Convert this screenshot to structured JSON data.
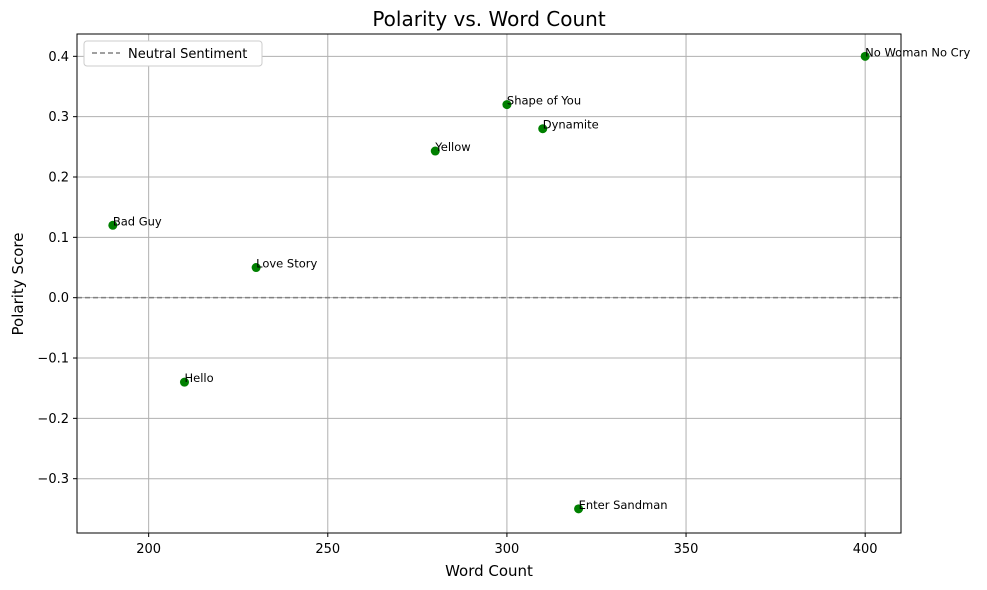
{
  "chart_data": {
    "type": "scatter",
    "title": "Polarity vs. Word Count",
    "xlabel": "Word Count",
    "ylabel": "Polarity Score",
    "xlim": [
      180,
      410
    ],
    "ylim": [
      -0.39,
      0.437
    ],
    "x_ticks": [
      200,
      250,
      300,
      350,
      400
    ],
    "y_ticks": [
      -0.3,
      -0.2,
      -0.1,
      0.0,
      0.1,
      0.2,
      0.3,
      0.4
    ],
    "x_tick_labels": [
      "200",
      "250",
      "300",
      "350",
      "400"
    ],
    "y_tick_labels": [
      "−0.3",
      "−0.2",
      "−0.1",
      "0.0",
      "0.1",
      "0.2",
      "0.3",
      "0.4"
    ],
    "grid": true,
    "legend": {
      "placement": "top-left",
      "entries": [
        "Neutral Sentiment"
      ]
    },
    "reference_line": {
      "y": 0,
      "style": "dashed",
      "color": "#808080",
      "label": "Neutral Sentiment"
    },
    "point_color": "#008000",
    "points": [
      {
        "label": "No Woman No Cry",
        "x": 400,
        "y": 0.4
      },
      {
        "label": "Shape of You",
        "x": 300,
        "y": 0.32
      },
      {
        "label": "Dynamite",
        "x": 310,
        "y": 0.28
      },
      {
        "label": "Yellow",
        "x": 280,
        "y": 0.243
      },
      {
        "label": "Bad Guy",
        "x": 190,
        "y": 0.12
      },
      {
        "label": "Love Story",
        "x": 230,
        "y": 0.05
      },
      {
        "label": "Hello",
        "x": 210,
        "y": -0.14
      },
      {
        "label": "Enter Sandman",
        "x": 320,
        "y": -0.35
      }
    ]
  }
}
